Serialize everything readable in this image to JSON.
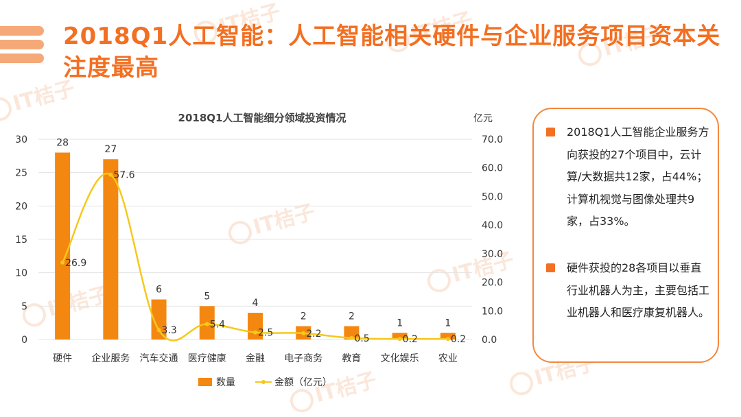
{
  "page": {
    "title": "2018Q1人工智能：人工智能相关硬件与企业服务项目资本关注度最高",
    "watermark": "IT桔子"
  },
  "chart_data": {
    "type": "bar",
    "title": "2018Q1人工智能细分领域投资情况",
    "categories": [
      "硬件",
      "企业服务",
      "汽车交通",
      "医疗健康",
      "金融",
      "电子商务",
      "教育",
      "文化娱乐",
      "农业"
    ],
    "series": [
      {
        "name": "数量",
        "type": "bar",
        "axis": "left",
        "values": [
          28,
          27,
          6,
          5,
          4,
          2,
          2,
          1,
          1
        ],
        "color": "#f4870f"
      },
      {
        "name": "金额（亿元）",
        "type": "line",
        "axis": "right",
        "values": [
          26.9,
          57.6,
          3.3,
          5.4,
          2.5,
          2.2,
          0.5,
          0.2,
          0.2
        ],
        "color": "#f6c81b"
      }
    ],
    "y_left": {
      "min": 0,
      "max": 30,
      "ticks": [
        "0",
        "5",
        "10",
        "15",
        "20",
        "25",
        "30"
      ]
    },
    "y_right": {
      "label": "亿元",
      "min": 0,
      "max": 70,
      "ticks": [
        "0.0",
        "10.0",
        "20.0",
        "30.0",
        "40.0",
        "50.0",
        "60.0",
        "70.0"
      ]
    },
    "grid": true,
    "legend": "bottom-center"
  },
  "notes": [
    "2018Q1人工智能企业服务方向获投的27个项目中，云计算/大数据共12家，占44%；计算机视觉与图像处理共9家，占33%。",
    "硬件获投的28各项目以垂直行业机器人为主，主要包括工业机器人和医疗康复机器人。"
  ],
  "colors": {
    "accent": "#f36f21",
    "bar": "#f4870f",
    "line": "#f6c81b",
    "box_border": "#f3883d"
  }
}
